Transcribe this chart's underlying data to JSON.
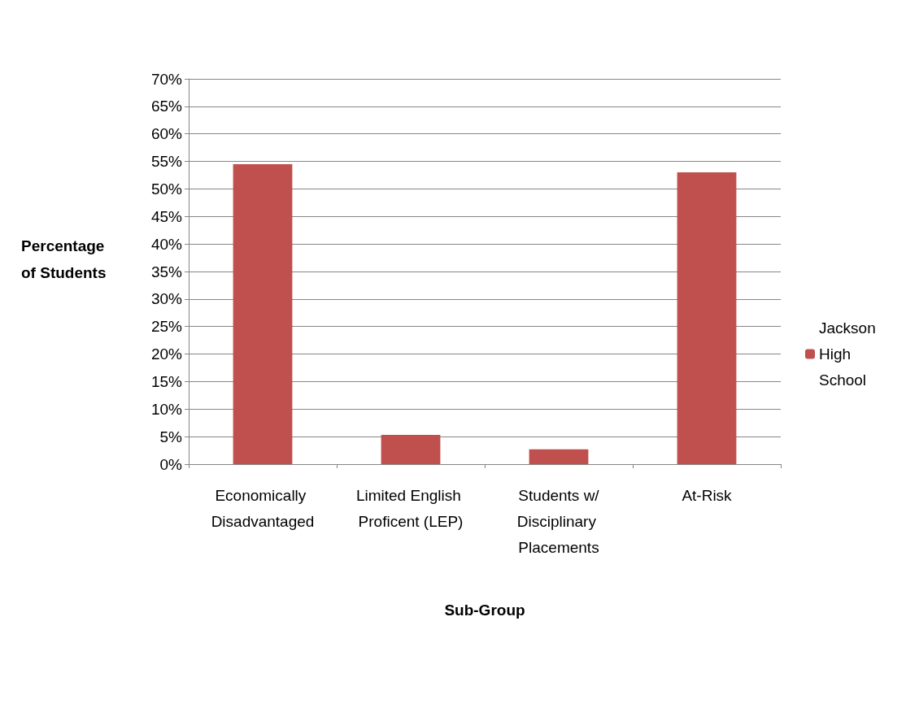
{
  "chart_data": {
    "type": "bar",
    "xlabel": "Sub-Group",
    "ylabel": "Percentage of Students",
    "categories": [
      "Economically Disadvantaged",
      "Limited English Proficent (LEP)",
      "Students w/Disciplinary Placements",
      "At-Risk"
    ],
    "series": [
      {
        "name": "Jackson High School",
        "color": "#c0504d",
        "values": [
          54.5,
          5.3,
          2.7,
          53.0
        ]
      }
    ],
    "ylim": [
      0,
      70
    ],
    "yticks": [
      {
        "value": 0,
        "label": "0%"
      },
      {
        "value": 5,
        "label": "5%"
      },
      {
        "value": 10,
        "label": "10%"
      },
      {
        "value": 15,
        "label": "15%"
      },
      {
        "value": 20,
        "label": "20%"
      },
      {
        "value": 25,
        "label": "25%"
      },
      {
        "value": 30,
        "label": "30%"
      },
      {
        "value": 35,
        "label": "35%"
      },
      {
        "value": 40,
        "label": "40%"
      },
      {
        "value": 45,
        "label": "45%"
      },
      {
        "value": 50,
        "label": "50%"
      },
      {
        "value": 55,
        "label": "55%"
      },
      {
        "value": 60,
        "label": "60%"
      },
      {
        "value": 65,
        "label": "65%"
      },
      {
        "value": 70,
        "label": "70%"
      }
    ],
    "grid": "y",
    "legend": "right"
  }
}
